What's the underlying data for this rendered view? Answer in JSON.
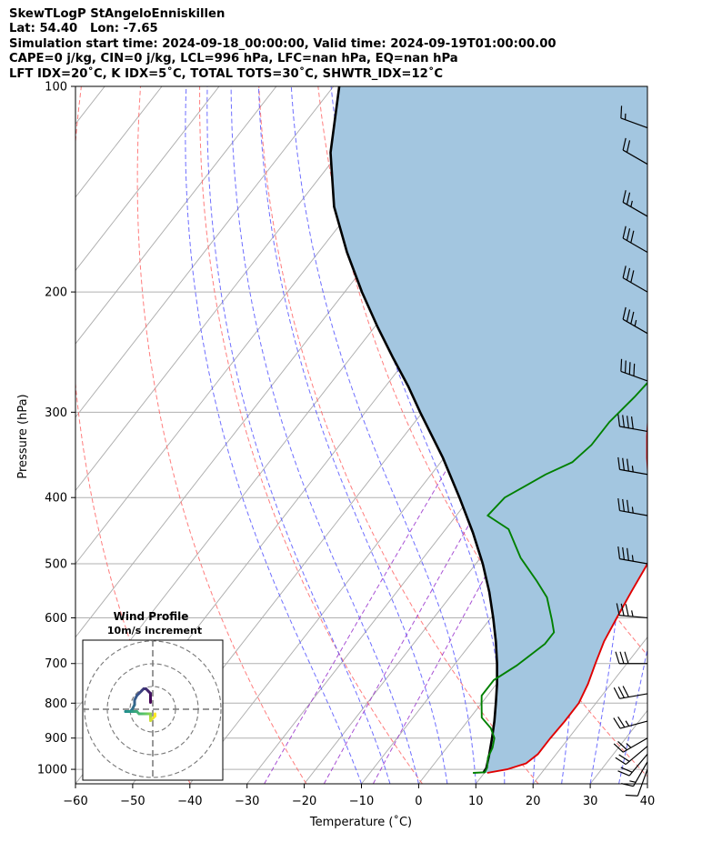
{
  "header": {
    "title": "SkewTLogP StAngeloEnniskillen",
    "location": "Lat: 54.40   Lon: -7.65",
    "times": "Simulation start time: 2024-09-18_00:00:00, Valid time: 2024-09-19T01:00:00.00",
    "indices1": "CAPE=0 j/kg, CIN=0 j/kg, LCL=996 hPa, LFC=nan hPa, EQ=nan hPa",
    "indices2": "LFT IDX=20˚C, K IDX=5˚C, TOTAL TOTS=30˚C, SHWTR_IDX=12˚C"
  },
  "chart_data": {
    "type": "line",
    "subtype": "skew-T log-P diagram",
    "xlabel": "Temperature (˚C)",
    "ylabel": "Pressure (hPa)",
    "xlim": [
      -60,
      40
    ],
    "ylim": [
      1050,
      100
    ],
    "y_scale": "log",
    "grid": true,
    "x_ticks": [
      -60,
      -50,
      -40,
      -30,
      -20,
      -10,
      0,
      10,
      20,
      30,
      40
    ],
    "y_ticks": [
      100,
      200,
      300,
      400,
      500,
      600,
      700,
      800,
      900,
      1000
    ],
    "colors": {
      "temperature": "#e00000",
      "dewpoint": "#008000",
      "parcel": "#000000",
      "cape_fill": "#a3c6e0",
      "dry_adiabats": "#ff6666",
      "moist_adiabats": "#5555ff",
      "mixing_ratio": "#9933cc",
      "isotherms": "#aaaaaa"
    },
    "series": [
      {
        "role": "temperature",
        "points": [
          [
            10.5,
            1012
          ],
          [
            13.5,
            1000
          ],
          [
            16,
            980
          ],
          [
            16.8,
            950
          ],
          [
            16.8,
            900
          ],
          [
            17,
            850
          ],
          [
            17,
            800
          ],
          [
            16,
            750
          ],
          [
            14.5,
            700
          ],
          [
            13,
            650
          ],
          [
            12,
            600
          ],
          [
            11,
            550
          ],
          [
            10,
            500
          ],
          [
            8.5,
            475
          ],
          [
            6.5,
            450
          ],
          [
            4,
            425
          ],
          [
            1.5,
            400
          ],
          [
            -1.5,
            375
          ],
          [
            -4.5,
            350
          ],
          [
            -7.5,
            325
          ],
          [
            -10.5,
            300
          ],
          [
            -13,
            275
          ],
          [
            -15,
            250
          ],
          [
            -16.5,
            235
          ],
          [
            -17,
            215
          ],
          [
            -18,
            200
          ],
          [
            -19,
            185
          ],
          [
            -20,
            170
          ],
          [
            -20,
            155
          ],
          [
            -18.5,
            145
          ],
          [
            -16.5,
            135
          ],
          [
            -14,
            125
          ],
          [
            -10.5,
            115
          ],
          [
            -7.5,
            106
          ],
          [
            -6,
            100
          ]
        ]
      },
      {
        "role": "dewpoint",
        "points": [
          [
            8,
            1012
          ],
          [
            10,
            1010
          ],
          [
            9.8,
            995
          ],
          [
            8.5,
            960
          ],
          [
            8,
            930
          ],
          [
            7,
            900
          ],
          [
            5,
            870
          ],
          [
            2,
            840
          ],
          [
            0,
            800
          ],
          [
            -1,
            780
          ],
          [
            -1,
            740
          ],
          [
            1,
            705
          ],
          [
            2,
            680
          ],
          [
            3,
            655
          ],
          [
            3,
            630
          ],
          [
            1,
            605
          ],
          [
            -3,
            560
          ],
          [
            -7,
            530
          ],
          [
            -13,
            490
          ],
          [
            -19,
            445
          ],
          [
            -24.5,
            425
          ],
          [
            -24,
            400
          ],
          [
            -22,
            385
          ],
          [
            -20,
            370
          ],
          [
            -17,
            355
          ],
          [
            -16,
            335
          ],
          [
            -16,
            310
          ],
          [
            -15,
            285
          ],
          [
            -14.5,
            265
          ],
          [
            -14.5,
            245
          ],
          [
            -16,
            230
          ],
          [
            -16.5,
            215
          ],
          [
            -16.5,
            200
          ],
          [
            -16.5,
            185
          ],
          [
            -16,
            170
          ],
          [
            -15,
            155
          ],
          [
            -13,
            140
          ],
          [
            -12.5,
            125
          ],
          [
            -12.5,
            110
          ],
          [
            -12,
            100
          ]
        ]
      },
      {
        "role": "parcel",
        "points": [
          [
            9.8,
            1012
          ],
          [
            9.7,
            996
          ],
          [
            8.3,
            950
          ],
          [
            6.6,
            900
          ],
          [
            4.7,
            850
          ],
          [
            2.5,
            800
          ],
          [
            0.1,
            750
          ],
          [
            -2.7,
            700
          ],
          [
            -5.9,
            650
          ],
          [
            -9.6,
            600
          ],
          [
            -13.8,
            550
          ],
          [
            -18.8,
            500
          ],
          [
            -24.8,
            450
          ],
          [
            -31.9,
            400
          ],
          [
            -40.2,
            350
          ],
          [
            -50.4,
            300
          ],
          [
            -56,
            275
          ],
          [
            -62.5,
            250
          ],
          [
            -69.5,
            225
          ],
          [
            -77,
            200
          ],
          [
            -85,
            175
          ],
          [
            -93.5,
            150
          ],
          [
            -101.5,
            125
          ],
          [
            -109,
            100
          ]
        ]
      }
    ],
    "dry_adiabats_theta_K": [
      230,
      250,
      270,
      290,
      310,
      330,
      350,
      370,
      390,
      410
    ],
    "moist_adiabats_start_C": [
      -10,
      -5,
      0,
      5,
      10,
      15,
      20,
      25,
      30,
      35
    ],
    "mixing_ratio_lines_gkg": [
      0.4,
      1,
      2
    ],
    "wind_barbs": [
      {
        "p": 1000,
        "speed_kt": 10,
        "dir_deg": 200
      },
      {
        "p": 975,
        "speed_kt": 15,
        "dir_deg": 210
      },
      {
        "p": 950,
        "speed_kt": 20,
        "dir_deg": 220
      },
      {
        "p": 925,
        "speed_kt": 20,
        "dir_deg": 230
      },
      {
        "p": 900,
        "speed_kt": 25,
        "dir_deg": 240
      },
      {
        "p": 850,
        "speed_kt": 25,
        "dir_deg": 255
      },
      {
        "p": 775,
        "speed_kt": 30,
        "dir_deg": 260
      },
      {
        "p": 700,
        "speed_kt": 30,
        "dir_deg": 270
      },
      {
        "p": 600,
        "speed_kt": 35,
        "dir_deg": 275
      },
      {
        "p": 500,
        "speed_kt": 35,
        "dir_deg": 280
      },
      {
        "p": 425,
        "speed_kt": 35,
        "dir_deg": 280
      },
      {
        "p": 370,
        "speed_kt": 35,
        "dir_deg": 280
      },
      {
        "p": 320,
        "speed_kt": 40,
        "dir_deg": 280
      },
      {
        "p": 270,
        "speed_kt": 40,
        "dir_deg": 290
      },
      {
        "p": 230,
        "speed_kt": 35,
        "dir_deg": 300
      },
      {
        "p": 200,
        "speed_kt": 30,
        "dir_deg": 300
      },
      {
        "p": 175,
        "speed_kt": 30,
        "dir_deg": 300
      },
      {
        "p": 155,
        "speed_kt": 25,
        "dir_deg": 300
      },
      {
        "p": 130,
        "speed_kt": 20,
        "dir_deg": 300
      },
      {
        "p": 115,
        "speed_kt": 15,
        "dir_deg": 290
      }
    ],
    "hodograph": {
      "title": "Wind Profile",
      "subtitle": "10m/s increment",
      "ring_spacing_ms": 10,
      "points_uv_ms": [
        [
          -1,
          -3
        ],
        [
          -1,
          -5
        ],
        [
          -1,
          -7
        ],
        [
          -2,
          -8
        ],
        [
          -3,
          -9
        ],
        [
          -4,
          -9
        ],
        [
          -5,
          -8
        ],
        [
          -6,
          -7
        ],
        [
          -7,
          -6
        ],
        [
          -8,
          -4
        ],
        [
          -8,
          -2
        ],
        [
          -9,
          0
        ],
        [
          -10,
          1
        ],
        [
          -11,
          1
        ],
        [
          -12,
          1
        ],
        [
          -11,
          1
        ],
        [
          -9,
          1
        ],
        [
          -8,
          1
        ],
        [
          -7,
          1
        ],
        [
          -6,
          2
        ],
        [
          -5,
          2
        ],
        [
          -4,
          2
        ],
        [
          -3,
          2
        ],
        [
          -2,
          2
        ],
        [
          -1,
          2
        ],
        [
          -1,
          3
        ],
        [
          -1,
          4
        ],
        [
          -1,
          5
        ],
        [
          0,
          4
        ],
        [
          1,
          3
        ],
        [
          1,
          2
        ]
      ]
    }
  }
}
